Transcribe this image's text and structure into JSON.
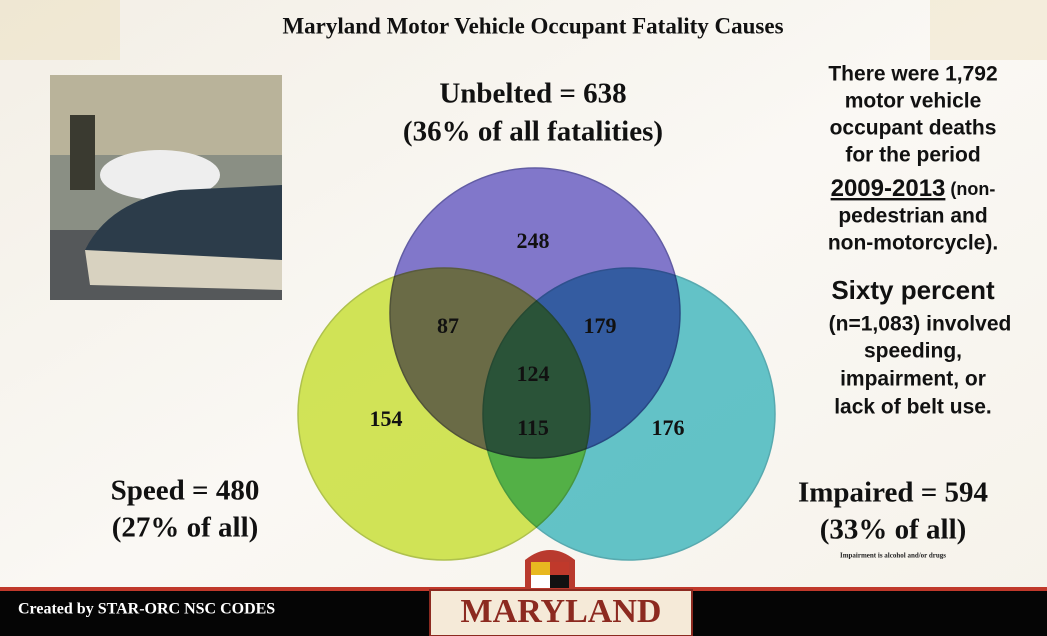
{
  "title": "Maryland Motor Vehicle Occupant  Fatality Causes",
  "venn": {
    "sets": [
      {
        "label": "Unbelted = 638",
        "sublabel": "(36% of all fatalities)"
      },
      {
        "label": "Speed = 480",
        "sublabel": "(27% of all)"
      },
      {
        "label": "Impaired = 594",
        "sublabel": "(33% of all)",
        "note": "Impairment is alcohol and/or drugs"
      }
    ],
    "regions": {
      "unbelted_only": 248,
      "unbelted_speed": 87,
      "unbelted_impaired": 179,
      "all_three": 124,
      "speed_only": 154,
      "speed_impaired": 115,
      "impaired_only": 176
    }
  },
  "side_text": {
    "intro": [
      "There were 1,792",
      "motor vehicle",
      "occupant deaths",
      "for the period"
    ],
    "period": "2009-2013",
    "period_suffix": " (non-",
    "intro_end": [
      "pedestrian and",
      "non-motorcycle)."
    ],
    "highlight": "Sixty percent",
    "detail": [
      "(n=1,083)  involved",
      "speeding,",
      "impairment, or",
      "lack of belt use."
    ]
  },
  "footer": {
    "credit": "Created by STAR-ORC NSC CODES",
    "logo": "MARYLAND"
  }
}
